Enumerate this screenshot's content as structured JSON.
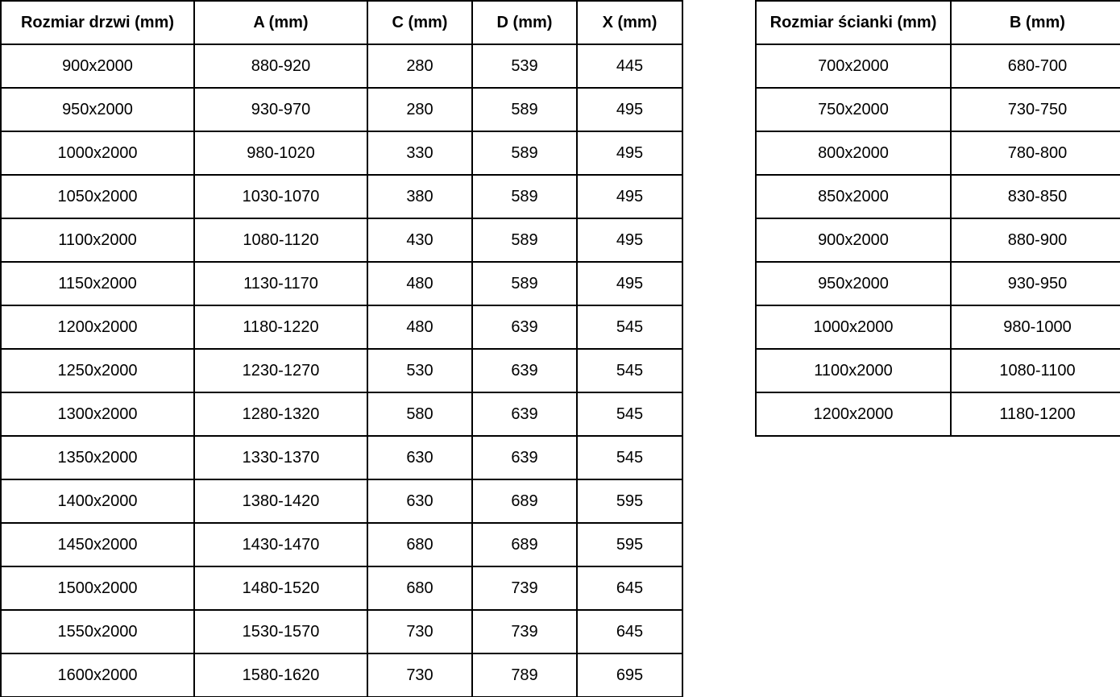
{
  "door_table": {
    "headers": [
      "Rozmiar drzwi (mm)",
      "A (mm)",
      "C (mm)",
      "D (mm)",
      "X (mm)"
    ],
    "rows": [
      [
        "900x2000",
        "880-920",
        "280",
        "539",
        "445"
      ],
      [
        "950x2000",
        "930-970",
        "280",
        "589",
        "495"
      ],
      [
        "1000x2000",
        "980-1020",
        "330",
        "589",
        "495"
      ],
      [
        "1050x2000",
        "1030-1070",
        "380",
        "589",
        "495"
      ],
      [
        "1100x2000",
        "1080-1120",
        "430",
        "589",
        "495"
      ],
      [
        "1150x2000",
        "1130-1170",
        "480",
        "589",
        "495"
      ],
      [
        "1200x2000",
        "1180-1220",
        "480",
        "639",
        "545"
      ],
      [
        "1250x2000",
        "1230-1270",
        "530",
        "639",
        "545"
      ],
      [
        "1300x2000",
        "1280-1320",
        "580",
        "639",
        "545"
      ],
      [
        "1350x2000",
        "1330-1370",
        "630",
        "639",
        "545"
      ],
      [
        "1400x2000",
        "1380-1420",
        "630",
        "689",
        "595"
      ],
      [
        "1450x2000",
        "1430-1470",
        "680",
        "689",
        "595"
      ],
      [
        "1500x2000",
        "1480-1520",
        "680",
        "739",
        "645"
      ],
      [
        "1550x2000",
        "1530-1570",
        "730",
        "739",
        "645"
      ],
      [
        "1600x2000",
        "1580-1620",
        "730",
        "789",
        "695"
      ]
    ]
  },
  "wall_table": {
    "headers": [
      "Rozmiar ścianki (mm)",
      "B (mm)"
    ],
    "rows": [
      [
        "700x2000",
        "680-700"
      ],
      [
        "750x2000",
        "730-750"
      ],
      [
        "800x2000",
        "780-800"
      ],
      [
        "850x2000",
        "830-850"
      ],
      [
        "900x2000",
        "880-900"
      ],
      [
        "950x2000",
        "930-950"
      ],
      [
        "1000x2000",
        "980-1000"
      ],
      [
        "1100x2000",
        "1080-1100"
      ],
      [
        "1200x2000",
        "1180-1200"
      ]
    ]
  },
  "colors": {
    "border": "#000000",
    "text": "#000000",
    "background": "#ffffff"
  }
}
